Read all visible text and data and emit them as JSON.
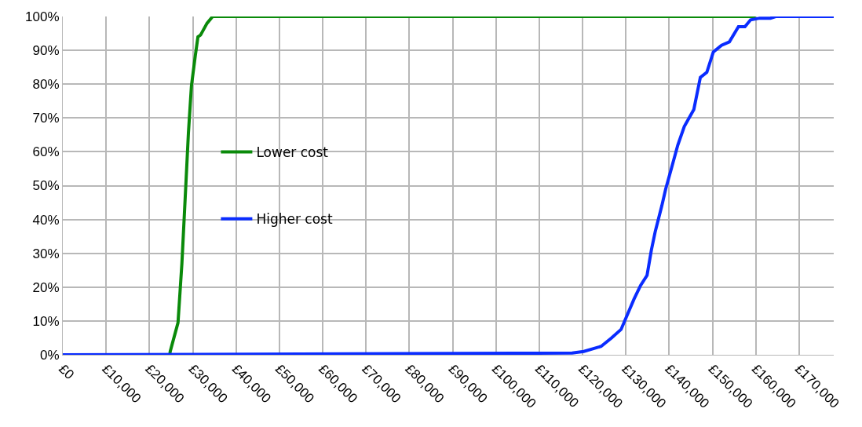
{
  "chart_data": {
    "type": "line",
    "xlim": [
      0,
      178000
    ],
    "xticks": [
      {
        "value": 0,
        "label": "£0"
      },
      {
        "value": 10000,
        "label": "£10,000"
      },
      {
        "value": 20000,
        "label": "£20,000"
      },
      {
        "value": 30000,
        "label": "£30,000"
      },
      {
        "value": 40000,
        "label": "£40,000"
      },
      {
        "value": 50000,
        "label": "£50,000"
      },
      {
        "value": 60000,
        "label": "£60,000"
      },
      {
        "value": 70000,
        "label": "£70,000"
      },
      {
        "value": 80000,
        "label": "£80,000"
      },
      {
        "value": 90000,
        "label": "£90,000"
      },
      {
        "value": 100000,
        "label": "£100,000"
      },
      {
        "value": 110000,
        "label": "£110,000"
      },
      {
        "value": 120000,
        "label": "£120,000"
      },
      {
        "value": 130000,
        "label": "£130,000"
      },
      {
        "value": 140000,
        "label": "£140,000"
      },
      {
        "value": 150000,
        "label": "£150,000"
      },
      {
        "value": 160000,
        "label": "£160,000"
      },
      {
        "value": 170000,
        "label": "£170,000"
      }
    ],
    "ylim": [
      0,
      100
    ],
    "yticks": [
      {
        "value": 0,
        "label": "0%"
      },
      {
        "value": 10,
        "label": "10%"
      },
      {
        "value": 20,
        "label": "20%"
      },
      {
        "value": 30,
        "label": "30%"
      },
      {
        "value": 40,
        "label": "40%"
      },
      {
        "value": 50,
        "label": "50%"
      },
      {
        "value": 60,
        "label": "60%"
      },
      {
        "value": 70,
        "label": "70%"
      },
      {
        "value": 80,
        "label": "80%"
      },
      {
        "value": 90,
        "label": "90%"
      },
      {
        "value": 100,
        "label": "100%"
      }
    ],
    "grid": true,
    "legend": "left",
    "marker": "none",
    "line_style": "solid",
    "series": [
      {
        "name": "Lower cost",
        "color": "#0a8a0a",
        "x": [
          0,
          24700,
          24800,
          26600,
          27500,
          28400,
          29000,
          29700,
          30600,
          31200,
          31800,
          33300,
          34600,
          160000
        ],
        "values": [
          0,
          0,
          1,
          9.5,
          27,
          50,
          65.5,
          79.5,
          88.5,
          94,
          94.5,
          98,
          100,
          100
        ]
      },
      {
        "name": "Higher cost",
        "color": "#0a2cff",
        "x": [
          0,
          117600,
          120300,
          124300,
          126700,
          128900,
          130400,
          131900,
          133400,
          134900,
          135900,
          136800,
          138300,
          139200,
          140500,
          142000,
          143500,
          145700,
          147200,
          148700,
          150200,
          152100,
          153900,
          156000,
          157500,
          158800,
          160900,
          163400,
          164600,
          178000
        ],
        "values": [
          0,
          0.5,
          1,
          2.5,
          5,
          7.5,
          12,
          16.5,
          20.5,
          23.5,
          31,
          36.5,
          44,
          49,
          55,
          62,
          67.5,
          72.5,
          82,
          83.5,
          89.5,
          91.5,
          92.5,
          97,
          97,
          99,
          99.5,
          99.5,
          100,
          100
        ]
      }
    ]
  }
}
